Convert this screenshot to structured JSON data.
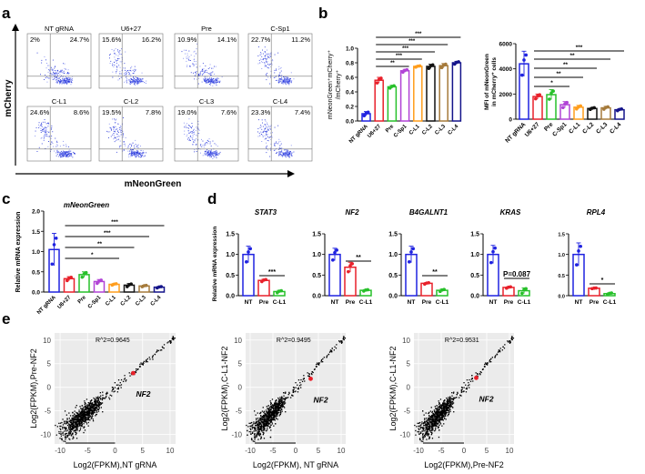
{
  "panel_labels": [
    "a",
    "b",
    "c",
    "d",
    "e"
  ],
  "colors": [
    "#1f22e0",
    "#e8202a",
    "#27c02a",
    "#b143d6",
    "#ff9d1c",
    "#111111",
    "#a57a3a",
    "#14148a"
  ],
  "chart_data": [
    {
      "id": "a",
      "type": "scatter",
      "xlabel": "mNeonGreen",
      "ylabel": "mCherry",
      "panels": [
        {
          "title": "NT gRNA",
          "upper_left": "2%",
          "upper_right": "24.7%"
        },
        {
          "title": "U6+27",
          "upper_left": "15.6%",
          "upper_right": "16.2%"
        },
        {
          "title": "Pre",
          "upper_left": "10.9%",
          "upper_right": "14.1%"
        },
        {
          "title": "C-Sp1",
          "upper_left": "22.7%",
          "upper_right": "11.2%"
        },
        {
          "title": "C-L1",
          "upper_left": "24.6%",
          "upper_right": "8.6%"
        },
        {
          "title": "C-L2",
          "upper_left": "19.5%",
          "upper_right": "7.8%"
        },
        {
          "title": "C-L3",
          "upper_left": "19.0%",
          "upper_right": "7.6%"
        },
        {
          "title": "C-L4",
          "upper_left": "23.3%",
          "upper_right": "7.4%"
        }
      ]
    },
    {
      "id": "b-left",
      "type": "bar",
      "ylabel": [
        "mNeonGreen⁺mCherry⁺",
        "/mCherry⁺"
      ],
      "ylim": [
        0,
        1.0
      ],
      "yticks": [
        "0.0",
        "0.2",
        "0.4",
        "0.6",
        "0.8",
        "1.0"
      ],
      "categories": [
        "NT gRNA",
        "U6+27",
        "Pre",
        "C-Sp1",
        "C-L1",
        "C-L2",
        "C-L3",
        "C-L4"
      ],
      "values": [
        0.1,
        0.56,
        0.47,
        0.69,
        0.75,
        0.75,
        0.76,
        0.8
      ],
      "errors": [
        0.03,
        0.04,
        0.02,
        0.02,
        0.01,
        0.03,
        0.03,
        0.02
      ],
      "significance": [
        {
          "from": 1,
          "to": 3,
          "label": "**"
        },
        {
          "from": 1,
          "to": 4,
          "label": "***"
        },
        {
          "from": 1,
          "to": 5,
          "label": "***"
        },
        {
          "from": 1,
          "to": 6,
          "label": "***"
        },
        {
          "from": 1,
          "to": 7,
          "label": "***"
        }
      ]
    },
    {
      "id": "b-right",
      "type": "bar",
      "ylabel": [
        "MFI of mNeonGreen",
        "in mCherry⁺ cells"
      ],
      "ylim": [
        0,
        6000
      ],
      "yticks": [
        "0",
        "2000",
        "4000",
        "6000"
      ],
      "categories": [
        "NT gRNA",
        "U6+27",
        "Pre",
        "C-Sp1",
        "C-L1",
        "C-L2",
        "C-L3",
        "C-L4"
      ],
      "values": [
        4400,
        1800,
        1950,
        1150,
        950,
        850,
        900,
        750
      ],
      "errors": [
        1000,
        200,
        400,
        250,
        150,
        80,
        120,
        80
      ],
      "significance": [
        {
          "from": 1,
          "to": 3,
          "label": "*"
        },
        {
          "from": 1,
          "to": 4,
          "label": "**"
        },
        {
          "from": 1,
          "to": 5,
          "label": "**"
        },
        {
          "from": 1,
          "to": 6,
          "label": "**"
        },
        {
          "from": 1,
          "to": 7,
          "label": "***"
        }
      ]
    },
    {
      "id": "c",
      "type": "bar",
      "title": "mNeonGreen",
      "ylabel": [
        "Relative mRNA expression"
      ],
      "ylim": [
        0,
        2.0
      ],
      "yticks": [
        "0.0",
        "0.5",
        "1.0",
        "1.5",
        "2.0"
      ],
      "categories": [
        "NT gRNA",
        "U6+27",
        "Pre",
        "C-Sp1",
        "C-L1",
        "C-L2",
        "C-L3",
        "C-L4"
      ],
      "values": [
        1.05,
        0.33,
        0.43,
        0.26,
        0.19,
        0.17,
        0.15,
        0.12
      ],
      "errors": [
        0.4,
        0.05,
        0.07,
        0.05,
        0.02,
        0.04,
        0.02,
        0.02
      ],
      "significance": [
        {
          "from": 1,
          "to": 4,
          "label": "*"
        },
        {
          "from": 1,
          "to": 5,
          "label": "**"
        },
        {
          "from": 1,
          "to": 6,
          "label": "***"
        },
        {
          "from": 1,
          "to": 7,
          "label": "***"
        }
      ]
    },
    {
      "id": "d",
      "type": "bar",
      "ylabel": [
        "Relative mRNA expression"
      ],
      "ylim": [
        0,
        1.5
      ],
      "yticks": [
        "0.0",
        "0.5",
        "1.0",
        "1.5"
      ],
      "categories": [
        "NT",
        "Pre",
        "C-L1"
      ],
      "subplots": [
        {
          "title": "STAT3",
          "values": [
            1.0,
            0.37,
            0.1
          ],
          "errors": [
            0.2,
            0.03,
            0.03
          ],
          "significance": {
            "from": 1,
            "to": 2,
            "label": "***"
          }
        },
        {
          "title": "NF2",
          "values": [
            1.0,
            0.69,
            0.13
          ],
          "errors": [
            0.15,
            0.12,
            0.02
          ],
          "significance": {
            "from": 1,
            "to": 2,
            "label": "**"
          }
        },
        {
          "title": "B4GALNT1",
          "values": [
            1.0,
            0.3,
            0.13
          ],
          "errors": [
            0.2,
            0.02,
            0.03
          ],
          "significance": {
            "from": 1,
            "to": 2,
            "label": "**"
          }
        },
        {
          "title": "KRAS",
          "values": [
            1.0,
            0.2,
            0.12
          ],
          "errors": [
            0.22,
            0.02,
            0.07
          ],
          "significance": {
            "from": 1,
            "to": 2,
            "label": "P=0.087"
          }
        },
        {
          "title": "RPL4",
          "values": [
            1.0,
            0.18,
            0.05
          ],
          "errors": [
            0.28,
            0.01,
            0.02
          ],
          "significance": {
            "from": 1,
            "to": 2,
            "label": "*"
          }
        }
      ]
    },
    {
      "id": "e",
      "type": "scatter",
      "xlim": [
        -11,
        11
      ],
      "ylim": [
        -12,
        11.5
      ],
      "xticks": [
        "-10",
        "-5",
        "0",
        "5",
        "10"
      ],
      "yticks": [
        "-10",
        "-5",
        "0",
        "5",
        "10"
      ],
      "gene_label": "NF2",
      "plots": [
        {
          "annotation": "R^2=0.9645",
          "xlabel": "Log2(FPKM),NT gRNA",
          "ylabel": "Log2(FPKM),Pre-NF2",
          "highlight": [
            3.3,
            3.0
          ]
        },
        {
          "annotation": "R^2=0.9495",
          "xlabel": "Log2(FPKM), NT gRNA",
          "ylabel": "Log2(FPKM),C-L1-NF2",
          "highlight": [
            3.3,
            1.8
          ]
        },
        {
          "annotation": "R^2=0.9531",
          "xlabel": "Log2(FPKM),Pre-NF2",
          "ylabel": "Log2(FPKM),C-L1-NF2",
          "highlight": [
            2.7,
            2.0
          ]
        }
      ]
    }
  ]
}
